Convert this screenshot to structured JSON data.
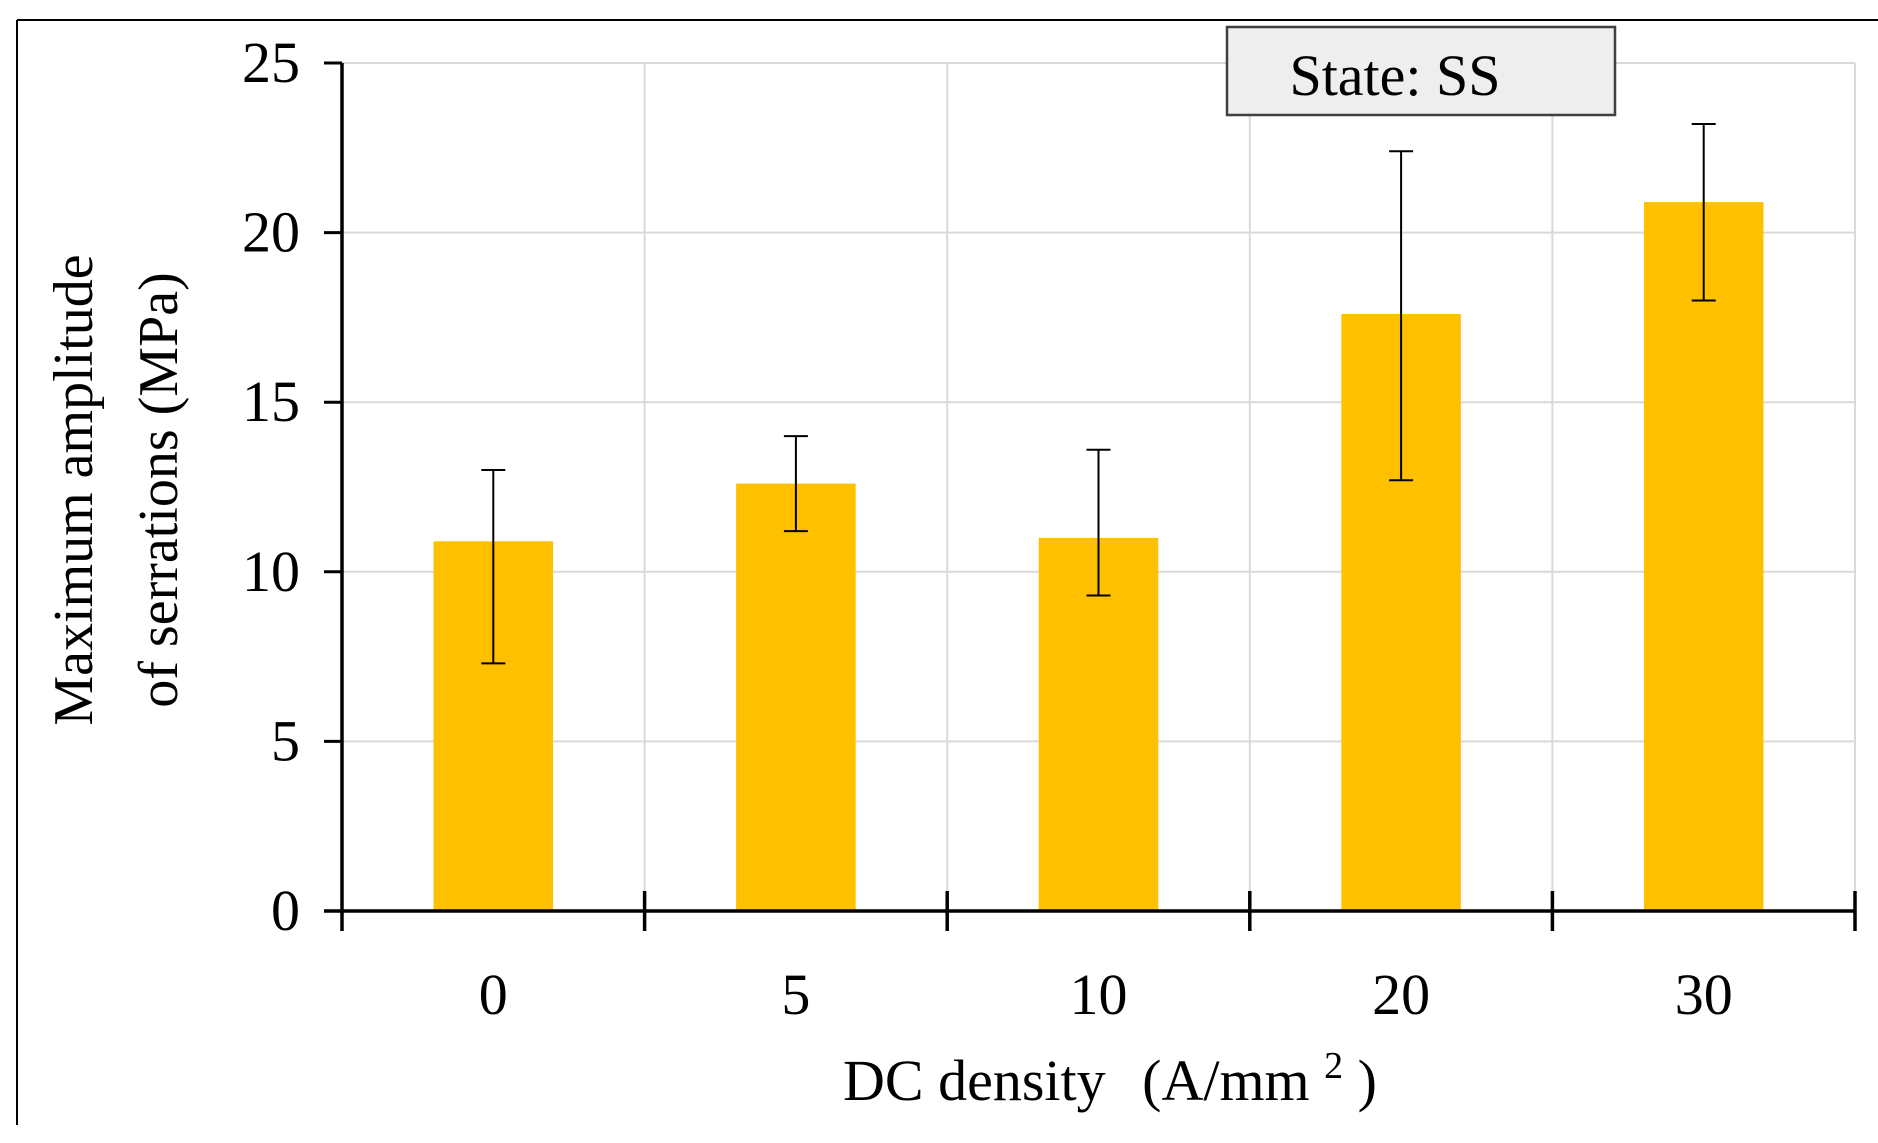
{
  "chart_data": {
    "type": "bar",
    "title": "",
    "annotation": "State: SS",
    "xlabel": "DC density",
    "xlabel_unit_prefix": "(A/mm",
    "xlabel_unit_superscript": "2",
    "xlabel_unit_suffix": ")",
    "ylabel_line1": "Maximum amplitude",
    "ylabel_line2": "of serrations (MPa)",
    "categories": [
      "0",
      "5",
      "10",
      "20",
      "30"
    ],
    "values": [
      10.9,
      12.6,
      11.0,
      17.6,
      20.9
    ],
    "error_low": [
      7.3,
      11.2,
      9.3,
      12.7,
      18.0
    ],
    "error_high": [
      13.0,
      14.0,
      13.6,
      22.4,
      23.2
    ],
    "ylim": [
      0,
      25
    ],
    "yticks": [
      "0",
      "5",
      "10",
      "15",
      "20",
      "25"
    ],
    "grid": true,
    "colors": {
      "bar": "#FFC000",
      "grid": "#D9D9D9",
      "axis": "#000000",
      "annotation_fill": "#EEEEEE"
    }
  }
}
